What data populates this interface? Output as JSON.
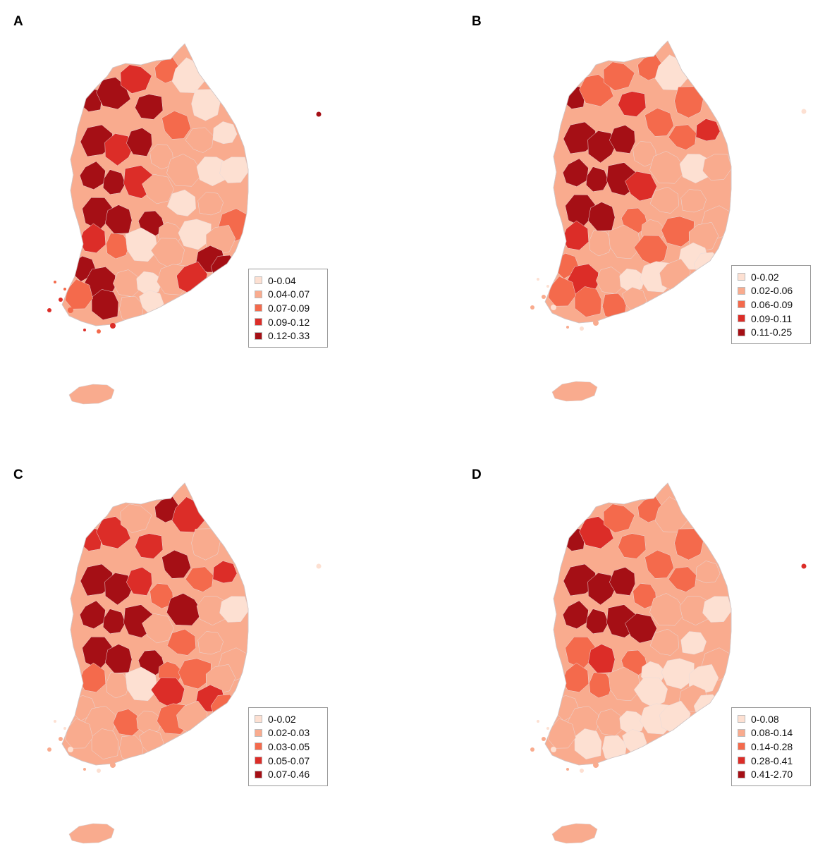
{
  "panels": [
    {
      "label": "A",
      "legend": [
        {
          "range": "0-0.04",
          "color": "#fde0d2"
        },
        {
          "range": "0.04-0.07",
          "color": "#f9ab8e"
        },
        {
          "range": "0.07-0.09",
          "color": "#f46a4c"
        },
        {
          "range": "0.09-0.12",
          "color": "#dc2d28"
        },
        {
          "range": "0.12-0.33",
          "color": "#a50f15"
        }
      ]
    },
    {
      "label": "B",
      "legend": [
        {
          "range": "0-0.02",
          "color": "#fde0d2"
        },
        {
          "range": "0.02-0.06",
          "color": "#f9ab8e"
        },
        {
          "range": "0.06-0.09",
          "color": "#f46a4c"
        },
        {
          "range": "0.09-0.11",
          "color": "#dc2d28"
        },
        {
          "range": "0.11-0.25",
          "color": "#a50f15"
        }
      ]
    },
    {
      "label": "C",
      "legend": [
        {
          "range": "0-0.02",
          "color": "#fde0d2"
        },
        {
          "range": "0.02-0.03",
          "color": "#f9ab8e"
        },
        {
          "range": "0.03-0.05",
          "color": "#f46a4c"
        },
        {
          "range": "0.05-0.07",
          "color": "#dc2d28"
        },
        {
          "range": "0.07-0.46",
          "color": "#a50f15"
        }
      ]
    },
    {
      "label": "D",
      "legend": [
        {
          "range": "0-0.08",
          "color": "#fde0d2"
        },
        {
          "range": "0.08-0.14",
          "color": "#f9ab8e"
        },
        {
          "range": "0.14-0.28",
          "color": "#f46a4c"
        },
        {
          "range": "0.28-0.41",
          "color": "#dc2d28"
        },
        {
          "range": "0.41-2.70",
          "color": "#a50f15"
        }
      ]
    }
  ]
}
